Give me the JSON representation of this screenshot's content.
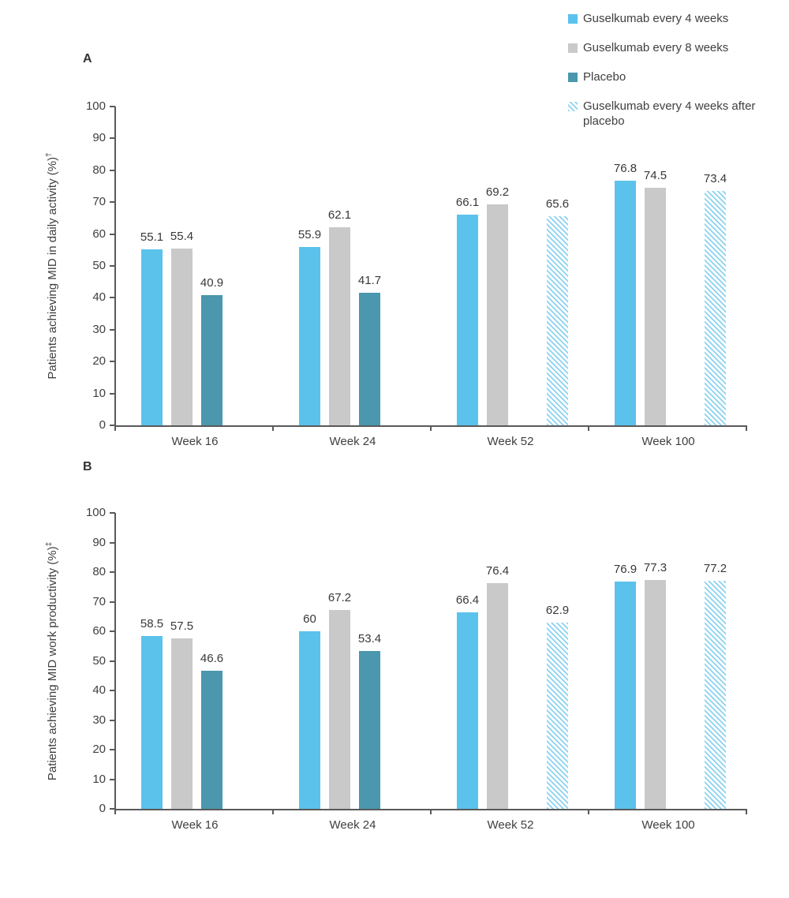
{
  "colors": {
    "guselkumab_q4w": "#5BC2EC",
    "guselkumab_q8w": "#C9C9C9",
    "placebo": "#4A97AE",
    "hatch_stripe": "#8BD2F0",
    "axis": "#595959",
    "text": "#404040"
  },
  "legend": {
    "items": [
      {
        "key": "g4w",
        "label": "Guselkumab every 4 weeks",
        "color": "#5BC2EC",
        "pattern": "solid"
      },
      {
        "key": "g8w",
        "label": "Guselkumab every 8 weeks",
        "color": "#C9C9C9",
        "pattern": "solid"
      },
      {
        "key": "placebo",
        "label": "Placebo",
        "color": "#4A97AE",
        "pattern": "solid"
      },
      {
        "key": "g4w-after-placebo",
        "label": "Guselkumab every 4 weeks after placebo",
        "color": "#8BD2F0",
        "pattern": "diagonal-hatch"
      }
    ]
  },
  "chart_data": [
    {
      "type": "bar",
      "panel_label": "A",
      "ylabel": "Patients achieving MID in daily activity (%)",
      "ylabel_superscript": "†",
      "xlabel": "",
      "categories": [
        "Week 16",
        "Week 24",
        "Week 52",
        "Week 100"
      ],
      "series": [
        {
          "key": "g4w",
          "name": "Guselkumab every 4 weeks",
          "color": "#5BC2EC",
          "pattern": "solid",
          "values": [
            55.1,
            55.9,
            66.1,
            76.8
          ]
        },
        {
          "key": "g8w",
          "name": "Guselkumab every 8 weeks",
          "color": "#C9C9C9",
          "pattern": "solid",
          "values": [
            55.4,
            62.1,
            69.2,
            74.5
          ]
        },
        {
          "key": "placebo",
          "name": "Placebo",
          "color": "#4A97AE",
          "pattern": "solid",
          "values": [
            40.9,
            41.7,
            null,
            null
          ]
        },
        {
          "key": "g4w-after-placebo",
          "name": "Guselkumab every 4 weeks after placebo",
          "color": "#8BD2F0",
          "pattern": "diagonal-hatch",
          "values": [
            null,
            null,
            65.6,
            73.4
          ]
        }
      ],
      "ylim": [
        0,
        100
      ],
      "ytick_step": 10,
      "grid": false,
      "data_labels": true,
      "legend_position": "top-right"
    },
    {
      "type": "bar",
      "panel_label": "B",
      "ylabel": "Patients achieving MID work productivity (%)",
      "ylabel_superscript": "‡",
      "xlabel": "",
      "categories": [
        "Week 16",
        "Week 24",
        "Week 52",
        "Week 100"
      ],
      "series": [
        {
          "key": "g4w",
          "name": "Guselkumab every 4 weeks",
          "color": "#5BC2EC",
          "pattern": "solid",
          "values": [
            58.5,
            60,
            66.4,
            76.9
          ]
        },
        {
          "key": "g8w",
          "name": "Guselkumab every 8 weeks",
          "color": "#C9C9C9",
          "pattern": "solid",
          "values": [
            57.5,
            67.2,
            76.4,
            77.3
          ]
        },
        {
          "key": "placebo",
          "name": "Placebo",
          "color": "#4A97AE",
          "pattern": "solid",
          "values": [
            46.6,
            53.4,
            null,
            null
          ]
        },
        {
          "key": "g4w-after-placebo",
          "name": "Guselkumab every 4 weeks after placebo",
          "color": "#8BD2F0",
          "pattern": "diagonal-hatch",
          "values": [
            null,
            null,
            62.9,
            77.2
          ]
        }
      ],
      "ylim": [
        0,
        100
      ],
      "ytick_step": 10,
      "grid": false,
      "data_labels": true,
      "legend_position": "top-right"
    }
  ]
}
